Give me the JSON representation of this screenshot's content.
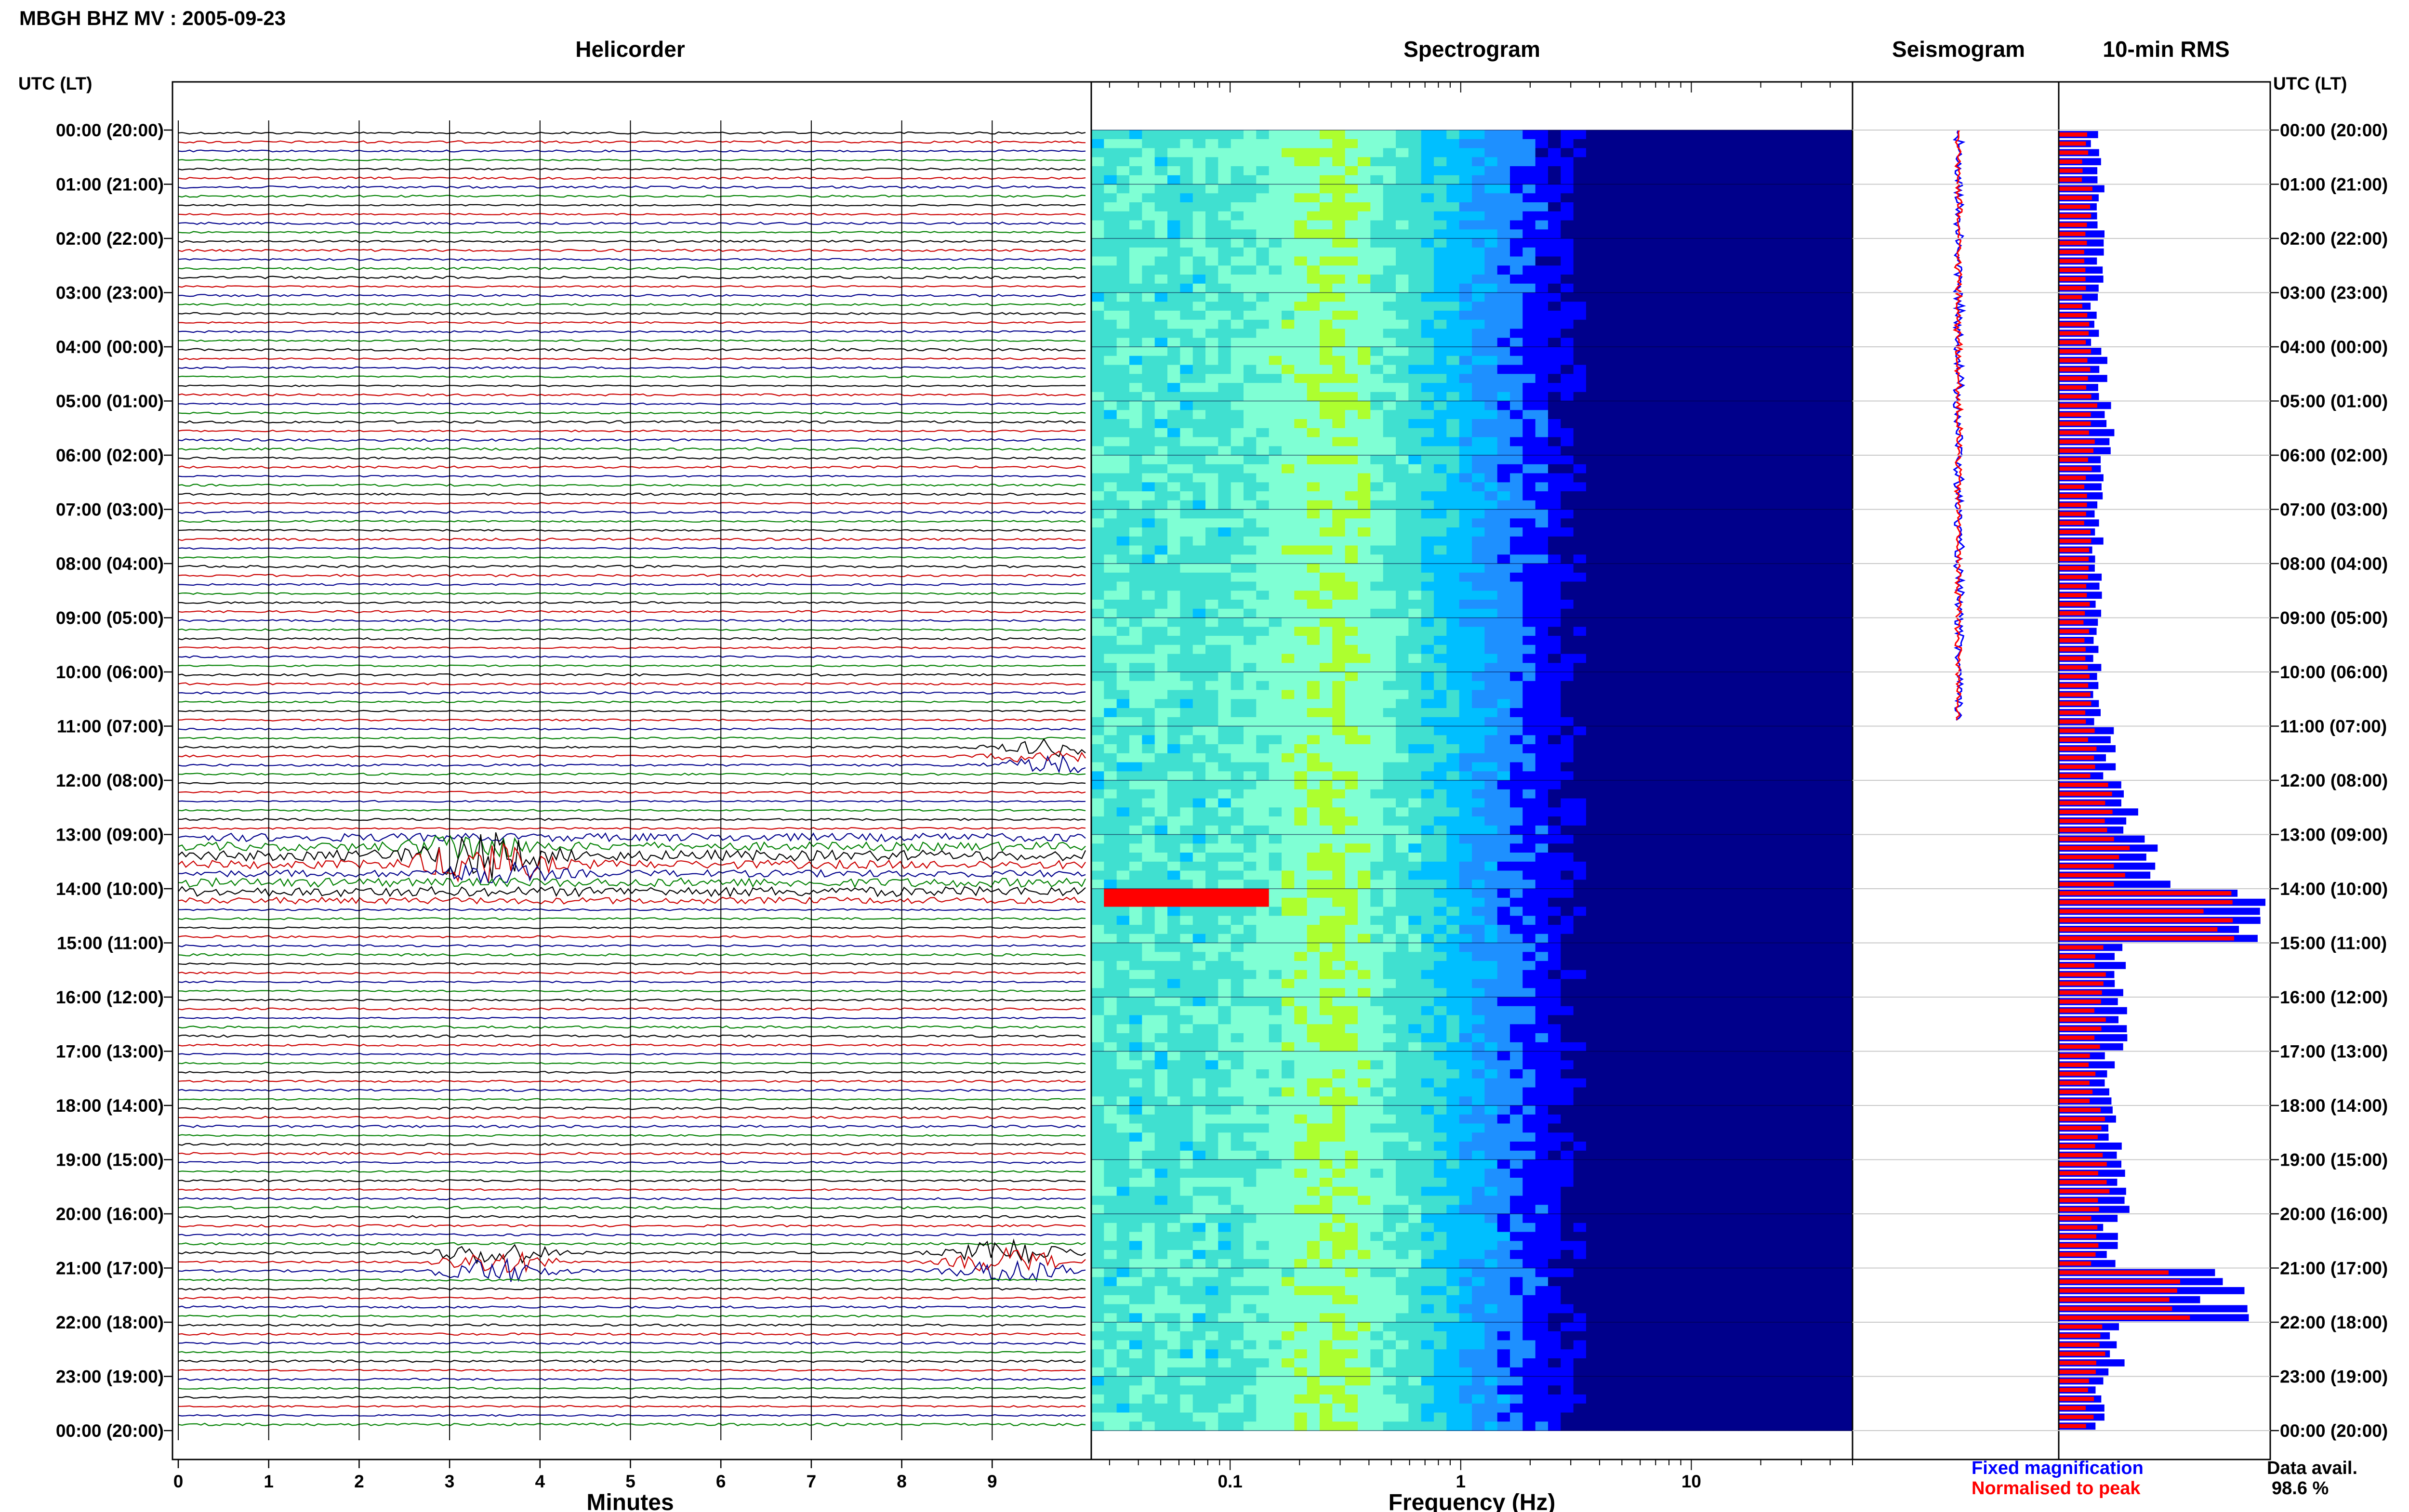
{
  "title": "MBGH BHZ MV : 2005-09-23",
  "headers": {
    "helicorder": "Helicorder",
    "spectrogram": "Spectrogram",
    "seismogram": "Seismogram",
    "rms": "10-min RMS"
  },
  "axis_caption_left": "UTC (LT)",
  "axis_caption_right": "UTC (LT)",
  "time_labels": [
    "00:00 (20:00)",
    "01:00 (21:00)",
    "02:00 (22:00)",
    "03:00 (23:00)",
    "04:00 (00:00)",
    "05:00 (01:00)",
    "06:00 (02:00)",
    "07:00 (03:00)",
    "08:00 (04:00)",
    "09:00 (05:00)",
    "10:00 (06:00)",
    "11:00 (07:00)",
    "12:00 (08:00)",
    "13:00 (09:00)",
    "14:00 (10:00)",
    "15:00 (11:00)",
    "16:00 (12:00)",
    "17:00 (13:00)",
    "18:00 (14:00)",
    "19:00 (15:00)",
    "20:00 (16:00)",
    "21:00 (17:00)",
    "22:00 (18:00)",
    "23:00 (19:00)",
    "00:00 (20:00)"
  ],
  "chart_data": [
    {
      "type": "line",
      "panel": "Helicorder",
      "xlabel": "Minutes",
      "xticks": [
        "0",
        "1",
        "2",
        "3",
        "4",
        "5",
        "6",
        "7",
        "8",
        "9"
      ],
      "xlim": [
        0,
        10
      ],
      "trace_colors": [
        "#000000",
        "#cc0000",
        "#00008b",
        "#008000"
      ],
      "traces_per_hour": 6,
      "events": [
        {
          "hour": 11.5,
          "minute": 9.7,
          "amp": 2.0
        },
        {
          "hour": 13.33,
          "minute": 3.2,
          "amp": 3.0
        },
        {
          "hour": 13.5,
          "minute": 3.5,
          "amp": 2.0
        },
        {
          "hour": 20.83,
          "minute": 3.5,
          "amp": 2.8
        },
        {
          "hour": 20.83,
          "minute": 9.2,
          "amp": 3.0
        }
      ]
    },
    {
      "type": "heatmap",
      "panel": "Spectrogram",
      "xlabel": "Frequency (Hz)",
      "xscale": "log",
      "xticks": [
        "0.1",
        "1",
        "10"
      ],
      "xlim": [
        0.025,
        50
      ],
      "ylim_hours": [
        0,
        24
      ],
      "colormap": [
        "#00008b",
        "#0000ff",
        "#1e90ff",
        "#00bfff",
        "#40e0d0",
        "#7fffd4",
        "#adff2f",
        "#ffff00",
        "#ff8c00",
        "#ff0000"
      ]
    },
    {
      "type": "line",
      "panel": "Seismogram",
      "series": [
        {
          "name": "Fixed magnification",
          "color": "#0000ff"
        },
        {
          "name": "Normalised to peak",
          "color": "#ff0000"
        }
      ]
    },
    {
      "type": "bar",
      "panel": "10-min RMS",
      "orientation": "horizontal",
      "bin_minutes": 10,
      "series": [
        {
          "name": "Fixed magnification",
          "color": "#0000ff"
        },
        {
          "name": "Normalised to peak",
          "color": "#ff0000"
        }
      ],
      "hourly_rms_blue": [
        0.18,
        0.2,
        0.19,
        0.18,
        0.21,
        0.24,
        0.2,
        0.19,
        0.2,
        0.19,
        0.19,
        0.24,
        0.35,
        0.48,
        0.98,
        0.3,
        0.3,
        0.24,
        0.28,
        0.3,
        0.25,
        0.8,
        0.28,
        0.2
      ],
      "hourly_rms_red": [
        0.13,
        0.15,
        0.14,
        0.13,
        0.15,
        0.17,
        0.14,
        0.14,
        0.14,
        0.14,
        0.14,
        0.16,
        0.23,
        0.3,
        0.75,
        0.2,
        0.2,
        0.17,
        0.2,
        0.22,
        0.18,
        0.6,
        0.2,
        0.15
      ]
    }
  ],
  "legend": {
    "fixed": "Fixed magnification",
    "normalised": "Normalised to peak",
    "fixed_color": "#0000ff",
    "normalised_color": "#ff0000"
  },
  "data_avail_label": "Data avail.",
  "data_avail_value": "98.6 %"
}
